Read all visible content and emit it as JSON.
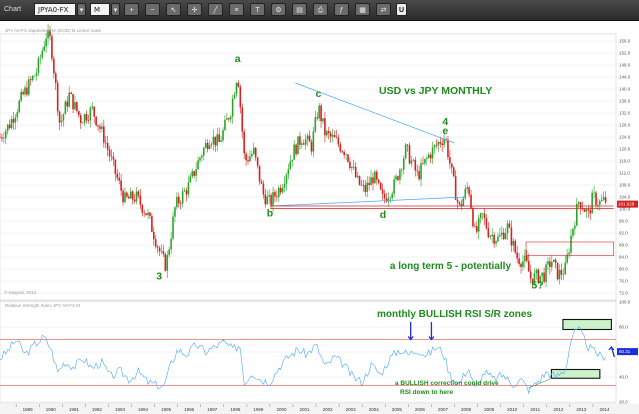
{
  "toolbar": {
    "chart_label": "Chart",
    "symbol_value": "JPYA0-FX",
    "period_value": "M",
    "icons": [
      "zoom-in-icon",
      "zoom-out-icon",
      "cursor-icon",
      "crosshair-icon",
      "draw-line-icon",
      "fibonacci-icon",
      "text-icon",
      "settings-icon",
      "template-icon",
      "print-icon",
      "indicator-icon",
      "grid-icon",
      "compare-icon"
    ],
    "u_label": "U"
  },
  "chart_data": [
    {
      "type": "candlestick",
      "title": "USD vs JPY MONTHLY",
      "header_text": "JPY A0-FX Japanese Yen (EOD)  M  Linear scale",
      "y_ticks": [
        72.0,
        76.0,
        80.0,
        84.0,
        88.0,
        92.0,
        96.0,
        100.0,
        104.0,
        108.0,
        112.0,
        116.0,
        120.0,
        124.0,
        128.0,
        132.0,
        136.0,
        140.0,
        144.0,
        148.0,
        152.0,
        156.0
      ],
      "ylim": [
        70,
        158
      ],
      "x_ticks": [
        "1989",
        "1990",
        "1991",
        "1992",
        "1993",
        "1994",
        "1995",
        "1996",
        "1997",
        "1998",
        "1999",
        "2000",
        "2001",
        "2002",
        "2003",
        "2004",
        "2005",
        "2006",
        "2007",
        "2008",
        "2009",
        "2010",
        "2011",
        "2012",
        "2013",
        "2014"
      ],
      "xlim": [
        1988.3,
        2015.0
      ],
      "path": [
        [
          1988.3,
          124
        ],
        [
          1988.7,
          128
        ],
        [
          1989.3,
          138
        ],
        [
          1989.9,
          146
        ],
        [
          1990.3,
          158
        ],
        [
          1990.5,
          156
        ],
        [
          1990.9,
          128
        ],
        [
          1991.3,
          138
        ],
        [
          1991.8,
          130
        ],
        [
          1992.3,
          133
        ],
        [
          1992.8,
          124
        ],
        [
          1993.3,
          112
        ],
        [
          1993.7,
          103
        ],
        [
          1994.2,
          104
        ],
        [
          1994.7,
          98
        ],
        [
          1995.3,
          84
        ],
        [
          1995.5,
          81
        ],
        [
          1995.9,
          101
        ],
        [
          1996.5,
          108
        ],
        [
          1997.0,
          118
        ],
        [
          1997.4,
          124
        ],
        [
          1997.8,
          122
        ],
        [
          1998.3,
          133
        ],
        [
          1998.6,
          146
        ],
        [
          1998.9,
          116
        ],
        [
          1999.3,
          119
        ],
        [
          1999.7,
          105
        ],
        [
          2000.0,
          102
        ],
        [
          2000.5,
          108
        ],
        [
          2001.0,
          119
        ],
        [
          2001.4,
          124
        ],
        [
          2001.8,
          121
        ],
        [
          2002.1,
          134
        ],
        [
          2002.4,
          125
        ],
        [
          2002.8,
          123
        ],
        [
          2003.3,
          119
        ],
        [
          2003.8,
          109
        ],
        [
          2004.1,
          106
        ],
        [
          2004.5,
          111
        ],
        [
          2004.9,
          103
        ],
        [
          2005.4,
          108
        ],
        [
          2005.9,
          120
        ],
        [
          2006.4,
          111
        ],
        [
          2006.9,
          118
        ],
        [
          2007.4,
          123
        ],
        [
          2007.6,
          124
        ],
        [
          2007.9,
          111
        ],
        [
          2008.2,
          100
        ],
        [
          2008.6,
          108
        ],
        [
          2008.9,
          91
        ],
        [
          2009.2,
          98
        ],
        [
          2009.5,
          92
        ],
        [
          2009.9,
          90
        ],
        [
          2010.3,
          94
        ],
        [
          2010.7,
          84
        ],
        [
          2011.1,
          82
        ],
        [
          2011.3,
          77
        ],
        [
          2011.9,
          78
        ],
        [
          2012.2,
          83
        ],
        [
          2012.5,
          78
        ],
        [
          2012.8,
          80
        ],
        [
          2013.1,
          93
        ],
        [
          2013.4,
          103
        ],
        [
          2013.8,
          98
        ],
        [
          2014.0,
          104
        ],
        [
          2014.3,
          102
        ],
        [
          2014.6,
          103
        ]
      ],
      "annotations": [
        {
          "text": "a",
          "x": 1998.6,
          "y": 149.0,
          "color": "#1e8c1e"
        },
        {
          "text": "b",
          "x": 2000.0,
          "y": 97.5,
          "color": "#1e8c1e"
        },
        {
          "text": "c",
          "x": 2002.1,
          "y": 137.3,
          "color": "#1e8c1e"
        },
        {
          "text": "d",
          "x": 2004.9,
          "y": 97.0,
          "color": "#1e8c1e"
        },
        {
          "text": "4",
          "x": 2007.6,
          "y": 128.0,
          "color": "#1e8c1e"
        },
        {
          "text": "e",
          "x": 2007.6,
          "y": 125.0,
          "color": "#1e8c1e"
        },
        {
          "text": "3",
          "x": 1995.2,
          "y": 76.5,
          "color": "#1e8c1e"
        },
        {
          "text": "5?",
          "x": 2011.6,
          "y": 73.5,
          "color": "#1e8c1e"
        },
        {
          "text": "a long term 5 - potentially",
          "x": 2005.2,
          "y": 80.0,
          "color": "#1e8c1e"
        }
      ],
      "trendlines": [
        {
          "from": [
            2001.1,
            142
          ],
          "to": [
            2008.0,
            122
          ],
          "color": "#4aa6ff"
        },
        {
          "from": [
            2000.0,
            101
          ],
          "to": [
            2008.5,
            104
          ],
          "color": "#4aa6ff"
        },
        {
          "from": [
            2000.0,
            101
          ],
          "to": [
            2014.9,
            101
          ],
          "color": "#e02020"
        },
        {
          "from": [
            2000.0,
            100.2
          ],
          "to": [
            2014.9,
            100.2
          ],
          "color": "#e02020"
        }
      ],
      "resistance_box": {
        "x0": 2011.1,
        "x1": 2014.9,
        "y0": 84.5,
        "y1": 89.0,
        "color": "#e02020"
      },
      "last_price_label": "101.628",
      "last_price": 101.628,
      "watermark": "© eSignal, 2014"
    },
    {
      "type": "line",
      "title": "monthly  BULLISH RSI S/R zones",
      "header_text": "Relative Strength Index  JPY A0-FX  M",
      "y_ticks": [
        20.0,
        40.0,
        60.0,
        80.0,
        100.0
      ],
      "ylim": [
        20,
        100
      ],
      "series_points": [
        [
          1988.3,
          55
        ],
        [
          1988.6,
          60
        ],
        [
          1989.0,
          70
        ],
        [
          1989.4,
          58
        ],
        [
          1989.8,
          66
        ],
        [
          1990.2,
          72
        ],
        [
          1990.5,
          63
        ],
        [
          1990.8,
          44
        ],
        [
          1991.1,
          52
        ],
        [
          1991.5,
          48
        ],
        [
          1991.9,
          55
        ],
        [
          1992.3,
          47
        ],
        [
          1992.7,
          52
        ],
        [
          1993.1,
          40
        ],
        [
          1993.5,
          45
        ],
        [
          1993.9,
          38
        ],
        [
          1994.3,
          44
        ],
        [
          1994.7,
          36
        ],
        [
          1995.0,
          34
        ],
        [
          1995.4,
          32
        ],
        [
          1995.7,
          50
        ],
        [
          1996.0,
          62
        ],
        [
          1996.4,
          58
        ],
        [
          1996.8,
          66
        ],
        [
          1997.2,
          60
        ],
        [
          1997.6,
          64
        ],
        [
          1998.0,
          68
        ],
        [
          1998.4,
          62
        ],
        [
          1998.7,
          66
        ],
        [
          1998.9,
          34
        ],
        [
          1999.2,
          44
        ],
        [
          1999.6,
          38
        ],
        [
          2000.0,
          36
        ],
        [
          2000.4,
          48
        ],
        [
          2000.8,
          56
        ],
        [
          2001.2,
          62
        ],
        [
          2001.6,
          58
        ],
        [
          2002.0,
          66
        ],
        [
          2002.4,
          48
        ],
        [
          2002.8,
          56
        ],
        [
          2003.2,
          50
        ],
        [
          2003.6,
          40
        ],
        [
          2004.0,
          36
        ],
        [
          2004.4,
          50
        ],
        [
          2004.8,
          42
        ],
        [
          2005.2,
          55
        ],
        [
          2005.6,
          62
        ],
        [
          2006.0,
          58
        ],
        [
          2006.4,
          62
        ],
        [
          2006.8,
          57
        ],
        [
          2007.2,
          64
        ],
        [
          2007.5,
          60
        ],
        [
          2007.8,
          42
        ],
        [
          2008.2,
          34
        ],
        [
          2008.6,
          48
        ],
        [
          2008.9,
          30
        ],
        [
          2009.3,
          44
        ],
        [
          2009.7,
          38
        ],
        [
          2010.1,
          42
        ],
        [
          2010.5,
          34
        ],
        [
          2010.9,
          38
        ],
        [
          2011.2,
          30
        ],
        [
          2011.6,
          36
        ],
        [
          2012.0,
          44
        ],
        [
          2012.4,
          40
        ],
        [
          2012.8,
          46
        ],
        [
          2013.1,
          74
        ],
        [
          2013.4,
          78
        ],
        [
          2013.8,
          64
        ],
        [
          2014.1,
          60
        ],
        [
          2014.4,
          56
        ],
        [
          2014.6,
          58
        ]
      ],
      "reference_lines": [
        {
          "y": 70,
          "color": "#e02020"
        },
        {
          "y": 33,
          "color": "#e02020"
        }
      ],
      "zones": [
        {
          "x0": 2012.7,
          "x1": 2014.8,
          "y0": 78,
          "y1": 86,
          "color": "#ccf2cc"
        },
        {
          "x0": 2012.2,
          "x1": 2014.3,
          "y0": 39,
          "y1": 46,
          "color": "#ccf2cc"
        }
      ],
      "arrows": [
        {
          "x": 2006.1,
          "y_from": 84,
          "y_to": 70,
          "color": "#1a2fd6"
        },
        {
          "x": 2007.0,
          "y_from": 84,
          "y_to": 70,
          "color": "#1a2fd6"
        },
        {
          "x": 2014.8,
          "y_from": 56,
          "y_to": 64,
          "color": "#1a2fd6"
        }
      ],
      "callout": "a BULLISH correction could drive RSI down to here",
      "last_value_label": "60.31",
      "last_value": 60.31
    }
  ]
}
